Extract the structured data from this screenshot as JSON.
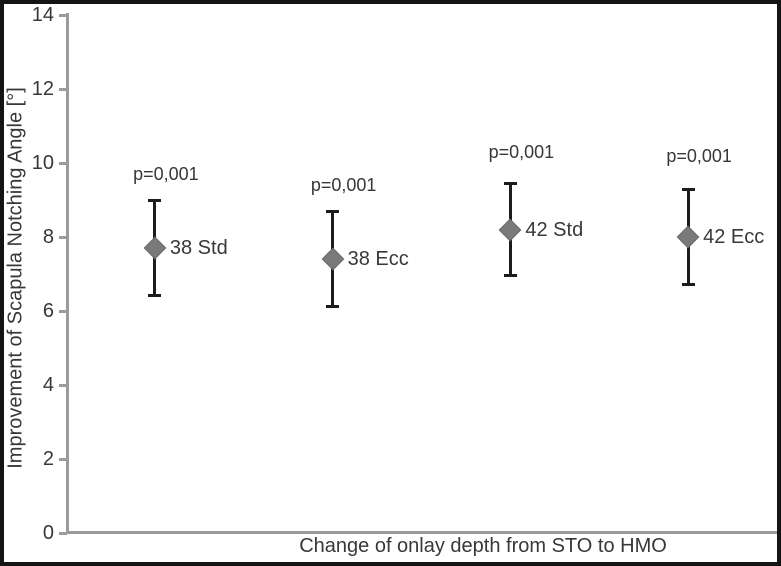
{
  "chart_data": {
    "type": "scatter",
    "title": "",
    "xlabel": "Change of onlay depth from STO to HMO",
    "ylabel": "Improvement of Scapula Notching Angle [°]",
    "ylim": [
      0,
      14
    ],
    "yticks": [
      0,
      2,
      4,
      6,
      8,
      10,
      12,
      14
    ],
    "grid": false,
    "legend": "none",
    "marker": "diamond",
    "points": [
      {
        "label": "38 Std",
        "y": 7.7,
        "err_low": 6.4,
        "err_high": 9.0,
        "annotation": "p=0,001",
        "annotation_y": 9.7
      },
      {
        "label": "38 Ecc",
        "y": 7.4,
        "err_low": 6.1,
        "err_high": 8.7,
        "annotation": "p=0,001",
        "annotation_y": 9.4
      },
      {
        "label": "42 Std",
        "y": 8.2,
        "err_low": 6.95,
        "err_high": 9.45,
        "annotation": "p=0,001",
        "annotation_y": 10.3
      },
      {
        "label": "42 Ecc",
        "y": 8.0,
        "err_low": 6.7,
        "err_high": 9.3,
        "annotation": "p=0,001",
        "annotation_y": 10.2
      }
    ]
  },
  "colors": {
    "frame": "#141414",
    "axis": "#9b9b9b",
    "text": "#383838",
    "error_bar": "#1c1c1c",
    "marker": "#7a7a7a"
  }
}
